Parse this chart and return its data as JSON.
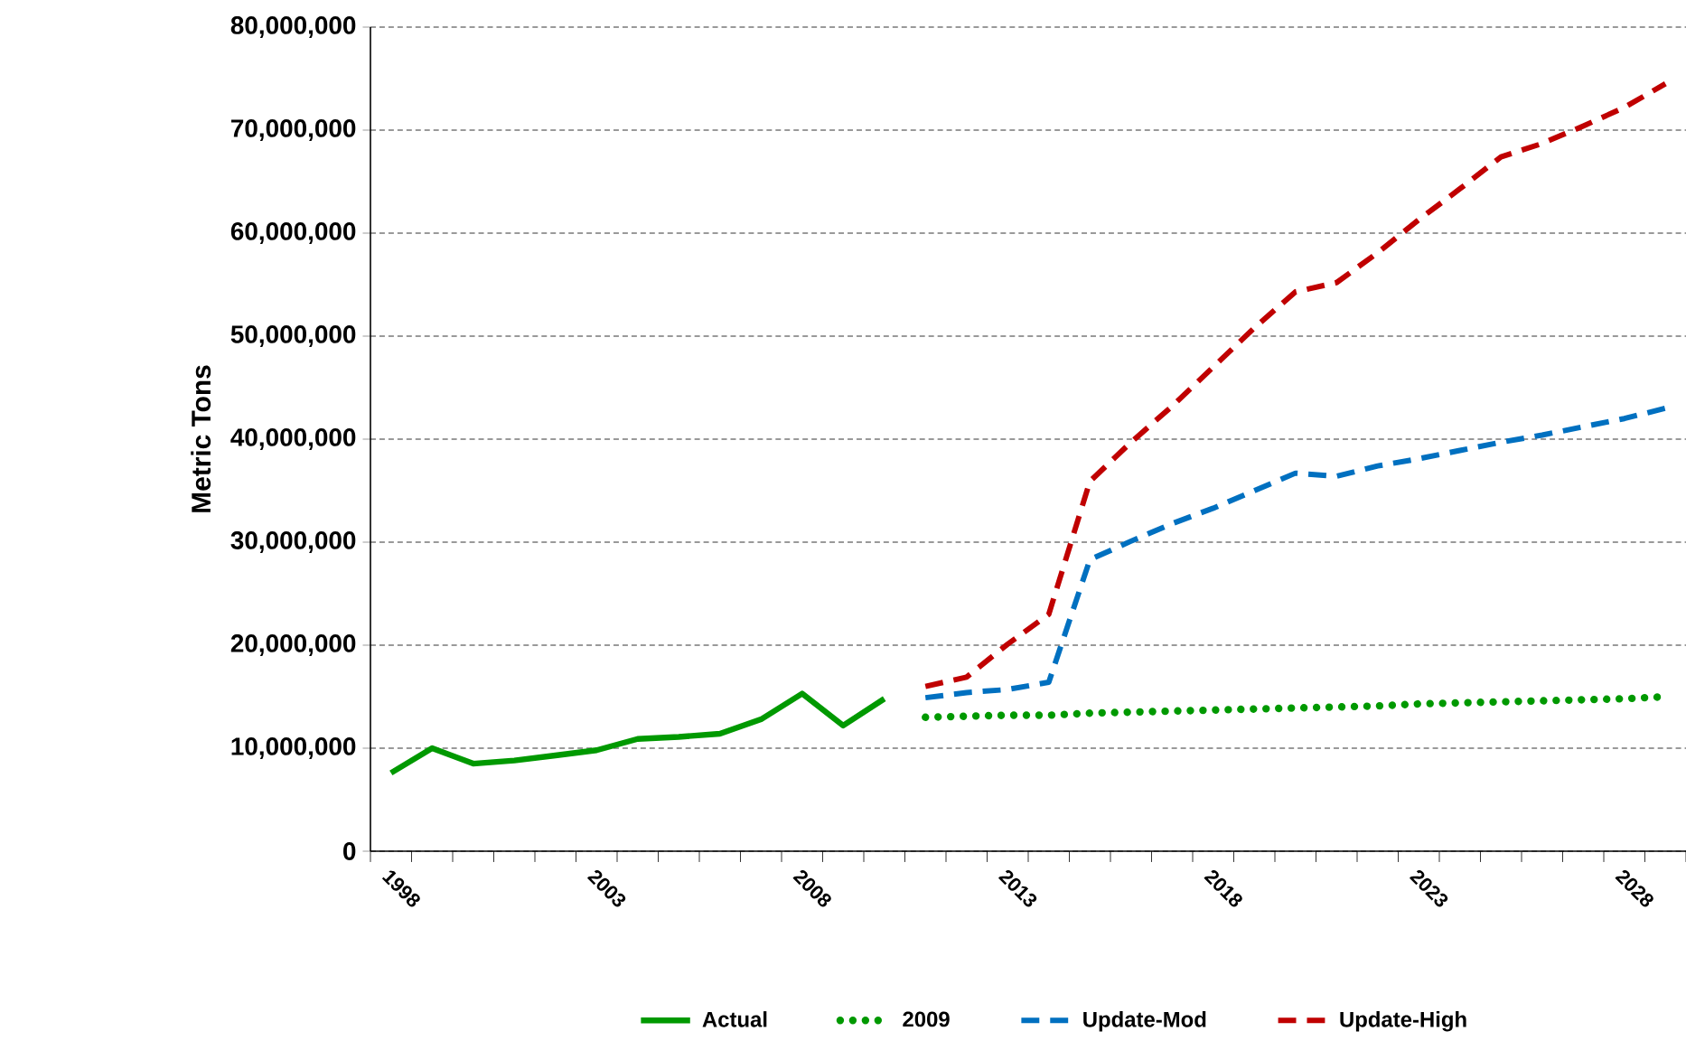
{
  "chart_data": {
    "type": "line",
    "ylabel": "Metric Tons",
    "categories": [
      "1998",
      null,
      null,
      null,
      null,
      "2003",
      null,
      null,
      null,
      null,
      "2008",
      null,
      null,
      null,
      null,
      "2013",
      null,
      null,
      null,
      null,
      "2018",
      null,
      null,
      null,
      null,
      "2023",
      null,
      null,
      null,
      null,
      "2028",
      null
    ],
    "series": [
      {
        "name": "Actual",
        "color": "#009900",
        "line_style": "solid",
        "values": [
          7600000,
          10000000,
          8500000,
          8800000,
          9300000,
          9800000,
          10900000,
          11100000,
          11400000,
          12800000,
          15300000,
          12200000,
          14800000,
          null,
          null,
          null,
          null,
          null,
          null,
          null,
          null,
          null,
          null,
          null,
          null,
          null,
          null,
          null,
          null,
          null,
          null,
          null
        ]
      },
      {
        "name": "2009",
        "color": "#009900",
        "line_style": "dotted",
        "values": [
          null,
          null,
          null,
          null,
          null,
          null,
          null,
          null,
          null,
          null,
          null,
          null,
          null,
          13000000,
          13100000,
          13200000,
          13200000,
          13400000,
          13500000,
          13600000,
          13700000,
          13800000,
          13900000,
          14000000,
          14100000,
          14300000,
          14400000,
          14500000,
          14600000,
          14700000,
          14800000,
          15000000
        ]
      },
      {
        "name": "Update-Mod",
        "color": "#0070c0",
        "line_style": "dashed",
        "values": [
          null,
          null,
          null,
          null,
          null,
          null,
          null,
          null,
          null,
          null,
          null,
          null,
          null,
          14900000,
          15400000,
          15700000,
          16400000,
          28300000,
          30100000,
          31800000,
          33300000,
          35000000,
          36700000,
          36400000,
          37400000,
          38100000,
          38900000,
          39700000,
          40400000,
          41200000,
          42000000,
          43000000
        ]
      },
      {
        "name": "Update-High",
        "color": "#c00000",
        "line_style": "dashed",
        "values": [
          null,
          null,
          null,
          null,
          null,
          null,
          null,
          null,
          null,
          null,
          null,
          null,
          null,
          16000000,
          16900000,
          20100000,
          23000000,
          35900000,
          39700000,
          43200000,
          47000000,
          50800000,
          54300000,
          55200000,
          58100000,
          61300000,
          64300000,
          67400000,
          68700000,
          70400000,
          72200000,
          74500000
        ]
      }
    ],
    "ylim": [
      0,
      80000000
    ],
    "yticks": [
      0,
      {
        "value": 10000000,
        "label": "10,000,000"
      },
      {
        "value": 20000000,
        "label": "20,000,000"
      },
      {
        "value": 30000000,
        "label": "30,000,000"
      },
      {
        "value": 40000000,
        "label": "40,000,000"
      },
      {
        "value": 50000000,
        "label": "50,000,000"
      },
      {
        "value": 60000000,
        "label": "60,000,000"
      },
      {
        "value": 70000000,
        "label": "70,000,000"
      },
      {
        "value": 80000000,
        "label": "80,000,000"
      }
    ],
    "grid": "y",
    "legend": "bottom",
    "marker": "none"
  }
}
